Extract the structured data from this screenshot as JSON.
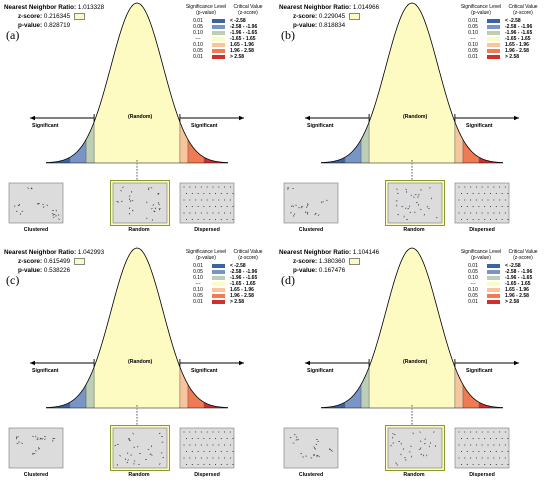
{
  "chart_data": [
    {
      "type": "area",
      "panel_letter": "(a)",
      "nearest_neighbor_ratio_label": "Nearest Neighbor Ratio:",
      "nearest_neighbor_ratio": "1.013328",
      "z_score_label": "z-score:",
      "z_score": "0.216345",
      "p_value_label": "p-value:",
      "p_value": "0.828719",
      "significance_header": [
        "Significance Level",
        "(p-value)"
      ],
      "critical_header": [
        "Critical Value",
        "(z-score)"
      ],
      "legend": [
        {
          "level": "0.01",
          "critical": "< -2.58",
          "color": "#3a64a4"
        },
        {
          "level": "0.05",
          "critical": "-2.58 - -1.96",
          "color": "#7895c6"
        },
        {
          "level": "0.10",
          "critical": "-1.96 - -1.65",
          "color": "#bccfb6"
        },
        {
          "level": "---",
          "critical": "-1.65 - 1.65",
          "color": "#fdfbc2"
        },
        {
          "level": "0.10",
          "critical": "1.65 - 1.96",
          "color": "#f8c49c"
        },
        {
          "level": "0.05",
          "critical": "1.96 - 2.58",
          "color": "#ef7a54"
        },
        {
          "level": "0.01",
          "critical": "> 2.58",
          "color": "#d12f2a"
        }
      ],
      "left_label": "Significant",
      "center_label": "(Random)",
      "right_label": "Significant",
      "thumbnails": [
        "Clustered",
        "Random",
        "Dispersed"
      ],
      "highlighted_thumbnail": "Random"
    },
    {
      "type": "area",
      "panel_letter": "(b)",
      "nearest_neighbor_ratio_label": "Nearest Neighbor Ratio:",
      "nearest_neighbor_ratio": "1.014966",
      "z_score_label": "z-score:",
      "z_score": "0.229045",
      "p_value_label": "p-value:",
      "p_value": "0.818834",
      "significance_header": [
        "Significance Level",
        "(p-value)"
      ],
      "critical_header": [
        "Critical Value",
        "(z-score)"
      ],
      "legend": [
        {
          "level": "0.01",
          "critical": "< -2.58",
          "color": "#3a64a4"
        },
        {
          "level": "0.05",
          "critical": "-2.58 - -1.96",
          "color": "#7895c6"
        },
        {
          "level": "0.10",
          "critical": "-1.96 - -1.65",
          "color": "#bccfb6"
        },
        {
          "level": "---",
          "critical": "-1.65 - 1.65",
          "color": "#fdfbc2"
        },
        {
          "level": "0.10",
          "critical": "1.65 - 1.96",
          "color": "#f8c49c"
        },
        {
          "level": "0.05",
          "critical": "1.96 - 2.58",
          "color": "#ef7a54"
        },
        {
          "level": "0.01",
          "critical": "> 2.58",
          "color": "#d12f2a"
        }
      ],
      "left_label": "Significant",
      "center_label": "(Random)",
      "right_label": "Significant",
      "thumbnails": [
        "Clustered",
        "Random",
        "Dispersed"
      ],
      "highlighted_thumbnail": "Random"
    },
    {
      "type": "area",
      "panel_letter": "(c)",
      "nearest_neighbor_ratio_label": "Nearest Neighbor Ratio:",
      "nearest_neighbor_ratio": "1.042993",
      "z_score_label": "z-score:",
      "z_score": "0.615499",
      "p_value_label": "p-value:",
      "p_value": "0.538226",
      "significance_header": [
        "Significance Level",
        "(p-value)"
      ],
      "critical_header": [
        "Critical Value",
        "(z-score)"
      ],
      "legend": [
        {
          "level": "0.01",
          "critical": "< -2.58",
          "color": "#3a64a4"
        },
        {
          "level": "0.05",
          "critical": "-2.58 - -1.96",
          "color": "#7895c6"
        },
        {
          "level": "0.10",
          "critical": "-1.96 - -1.65",
          "color": "#bccfb6"
        },
        {
          "level": "---",
          "critical": "-1.65 - 1.65",
          "color": "#fdfbc2"
        },
        {
          "level": "0.10",
          "critical": "1.65 - 1.96",
          "color": "#f8c49c"
        },
        {
          "level": "0.05",
          "critical": "1.96 - 2.58",
          "color": "#ef7a54"
        },
        {
          "level": "0.01",
          "critical": "> 2.58",
          "color": "#d12f2a"
        }
      ],
      "left_label": "Significant",
      "center_label": "(Random)",
      "right_label": "Significant",
      "thumbnails": [
        "Clustered",
        "Random",
        "Dispersed"
      ],
      "highlighted_thumbnail": "Random"
    },
    {
      "type": "area",
      "panel_letter": "(d)",
      "nearest_neighbor_ratio_label": "Nearest Neighbor Ratio:",
      "nearest_neighbor_ratio": "1.104146",
      "z_score_label": "z-score:",
      "z_score": "1.380360",
      "p_value_label": "p-value:",
      "p_value": "0.167476",
      "significance_header": [
        "Significance Level",
        "(p-value)"
      ],
      "critical_header": [
        "Critical Value",
        "(z-score)"
      ],
      "legend": [
        {
          "level": "0.01",
          "critical": "< -2.58",
          "color": "#3a64a4"
        },
        {
          "level": "0.05",
          "critical": "-2.58 - -1.96",
          "color": "#7895c6"
        },
        {
          "level": "0.10",
          "critical": "-1.96 - -1.65",
          "color": "#bccfb6"
        },
        {
          "level": "---",
          "critical": "-1.65 - 1.65",
          "color": "#fdfbc2"
        },
        {
          "level": "0.10",
          "critical": "1.65 - 1.96",
          "color": "#f8c49c"
        },
        {
          "level": "0.05",
          "critical": "1.96 - 2.58",
          "color": "#ef7a54"
        },
        {
          "level": "0.01",
          "critical": "> 2.58",
          "color": "#d12f2a"
        }
      ],
      "left_label": "Significant",
      "center_label": "(Random)",
      "right_label": "Significant",
      "thumbnails": [
        "Clustered",
        "Random",
        "Dispersed"
      ],
      "highlighted_thumbnail": "Random"
    }
  ]
}
